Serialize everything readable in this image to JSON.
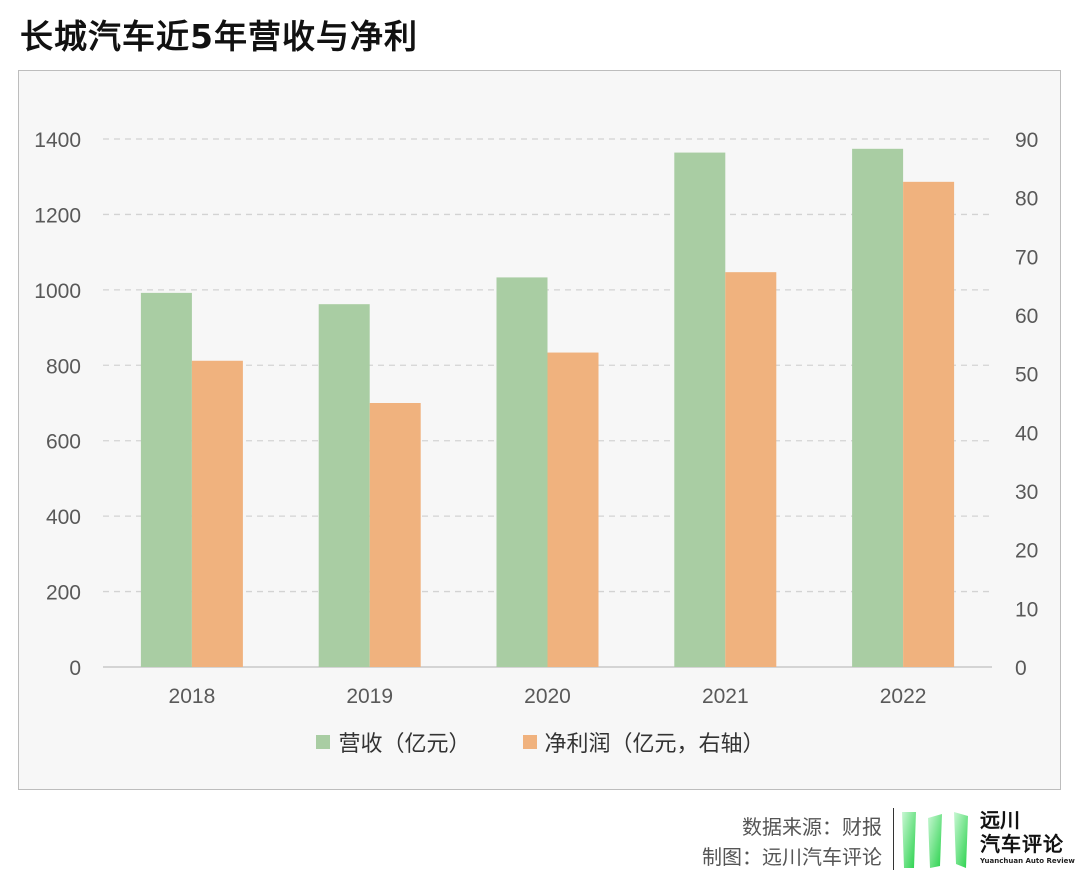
{
  "title": "长城汽车近5年营收与净利",
  "chart_data": {
    "type": "bar",
    "categories": [
      "2018",
      "2019",
      "2020",
      "2021",
      "2022"
    ],
    "series": [
      {
        "name": "营收（亿元）",
        "axis": "left",
        "color": "#a9cda3",
        "values": [
          992,
          962,
          1033,
          1364,
          1374
        ]
      },
      {
        "name": "净利润（亿元，右轴）",
        "axis": "right",
        "color": "#f0b27e",
        "values": [
          52.2,
          45.0,
          53.6,
          67.3,
          82.7
        ]
      }
    ],
    "y_left": {
      "ticks": [
        "0",
        "200",
        "400",
        "600",
        "800",
        "1000",
        "1200",
        "1400"
      ],
      "range": [
        0,
        1400
      ]
    },
    "y_right": {
      "ticks": [
        "0",
        "10",
        "20",
        "30",
        "40",
        "50",
        "60",
        "70",
        "80",
        "90"
      ],
      "range": [
        0,
        90
      ]
    },
    "grid": "dashed horizontal",
    "legend": "bottom"
  },
  "footer": {
    "source": "数据来源：财报",
    "made_by": "制图：远川汽车评论"
  },
  "logo": {
    "line1": "远川",
    "line2": "汽车评论",
    "english": "Yuanchuan Auto Review"
  }
}
